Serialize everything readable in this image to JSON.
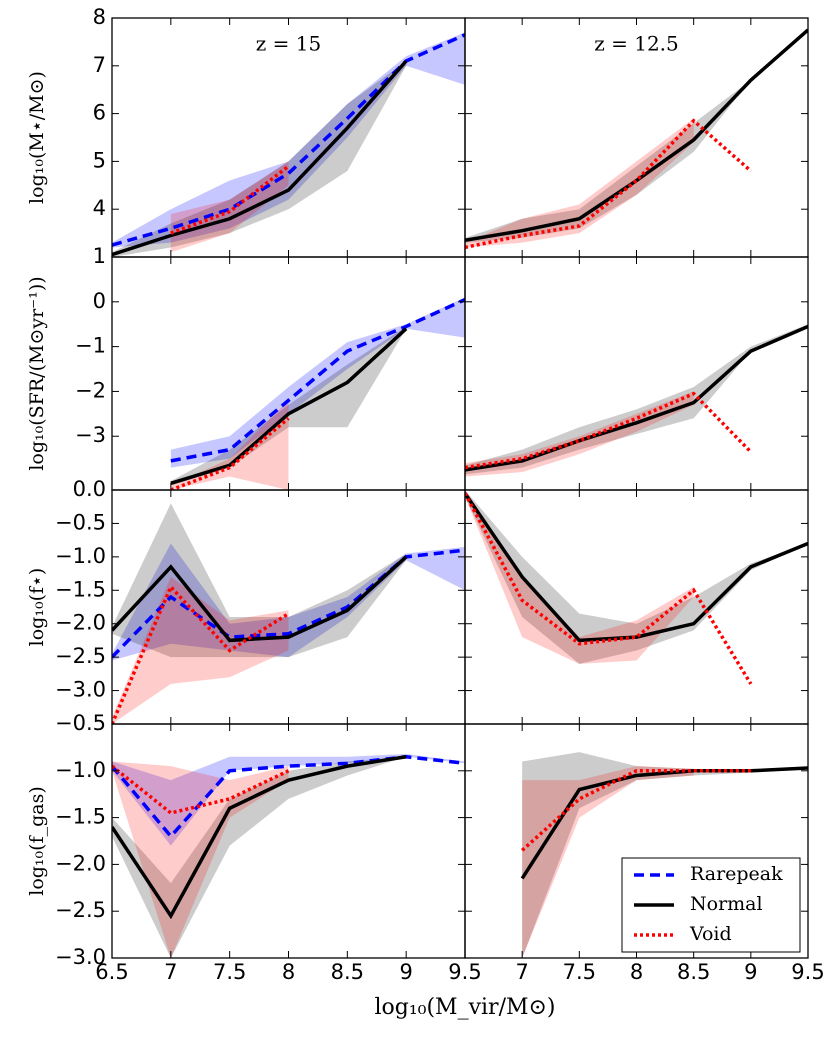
{
  "chart_data": {
    "type": "line",
    "xlabel": "log₁₀(M_vir/M⊙)",
    "x": [
      6.5,
      7.0,
      7.5,
      8.0,
      8.5,
      9.0,
      9.5
    ],
    "xlim": [
      6.5,
      9.5
    ],
    "xticks": [
      6.5,
      7.0,
      7.5,
      8.0,
      8.5,
      9.0,
      9.5
    ],
    "panel_titles": [
      "z = 15",
      "z = 12.5"
    ],
    "legend": "lower right",
    "grid": false,
    "rows": [
      {
        "ylabel": "log₁₀(M⋆/M⊙)",
        "ylim": [
          3,
          8
        ],
        "yticks": [
          4,
          5,
          6,
          7,
          8
        ]
      },
      {
        "ylabel": "log₁₀(SFR/(M⊙yr⁻¹))",
        "ylim": [
          -4.2,
          1
        ],
        "yticks": [
          {
            "value": -3,
            "label": "−3"
          },
          {
            "value": -2,
            "label": "−2"
          },
          {
            "value": -1,
            "label": "−1"
          },
          0,
          1
        ]
      },
      {
        "ylabel": "log₁₀(f⋆)",
        "ylim": [
          -3.5,
          0
        ],
        "yticks": [
          {
            "value": -3,
            "label": "−3.0"
          },
          {
            "value": -2.5,
            "label": "−2.5"
          },
          {
            "value": -2,
            "label": "−2.0"
          },
          {
            "value": -1.5,
            "label": "−1.5"
          },
          {
            "value": -1,
            "label": "−1.0"
          },
          {
            "value": -0.5,
            "label": "−0.5"
          },
          {
            "value": 0,
            "label": "0.0"
          }
        ]
      },
      {
        "ylabel": "log₁₀(f_gas)",
        "ylim": [
          -3,
          -0.5
        ],
        "yticks": [
          {
            "value": -3,
            "label": "−3.0"
          },
          {
            "value": -2.5,
            "label": "−2.5"
          },
          {
            "value": -2,
            "label": "−2.0"
          },
          {
            "value": -1.5,
            "label": "−1.5"
          },
          {
            "value": -1,
            "label": "−1.0"
          },
          {
            "value": -0.5,
            "label": "−0.5"
          }
        ]
      }
    ],
    "series": [
      {
        "name": "Rarepeak",
        "color": "#0000ff",
        "dash": "10,6",
        "band_color": "#0000ff",
        "band_alpha": 0.22,
        "panels": [
          [
            {
              "values": [
                3.25,
                3.6,
                4.0,
                4.75,
                5.9,
                7.1,
                7.65
              ],
              "lower": [
                3.2,
                3.3,
                3.6,
                4.2,
                5.5,
                7.0,
                6.6
              ],
              "upper": [
                3.3,
                4.0,
                4.6,
                5.0,
                6.2,
                7.2,
                7.7
              ]
            },
            null
          ],
          [
            {
              "values": [
                null,
                -3.55,
                -3.3,
                -2.2,
                -1.1,
                -0.55,
                0.05
              ],
              "lower": [
                null,
                -3.7,
                -3.5,
                -2.5,
                -1.5,
                -0.6,
                -0.8
              ],
              "upper": [
                null,
                -3.3,
                -3.0,
                -1.9,
                -0.9,
                -0.5,
                0.1
              ]
            },
            null
          ],
          [
            {
              "values": [
                -2.5,
                -1.6,
                -2.2,
                -2.15,
                -1.75,
                -1.0,
                -0.9
              ],
              "lower": [
                -2.55,
                -2.3,
                -2.4,
                -2.5,
                -1.9,
                -1.05,
                -1.5
              ],
              "upper": [
                -2.45,
                -0.8,
                -2.0,
                -1.9,
                -1.6,
                -0.95,
                -0.85
              ]
            },
            null
          ],
          [
            {
              "values": [
                -0.95,
                -1.7,
                -1.0,
                -0.95,
                -0.92,
                -0.85,
                -0.92
              ],
              "lower": [
                -1.0,
                -1.8,
                -1.0,
                -0.95,
                -0.92,
                -0.85,
                -0.92
              ],
              "upper": [
                -0.9,
                -1.1,
                -0.85,
                -0.85,
                -0.85,
                -0.82,
                -0.9
              ]
            },
            null
          ]
        ]
      },
      {
        "name": "Normal",
        "color": "#000000",
        "dash": "none",
        "band_color": "#000000",
        "band_alpha": 0.2,
        "panels": [
          [
            {
              "values": [
                3.05,
                3.45,
                3.8,
                4.4,
                5.7,
                7.1,
                null
              ],
              "lower": [
                3.0,
                3.2,
                3.5,
                4.0,
                4.8,
                7.0,
                null
              ],
              "upper": [
                3.1,
                3.7,
                4.2,
                5.0,
                6.2,
                7.1,
                null
              ]
            },
            {
              "values": [
                3.35,
                3.55,
                3.8,
                4.6,
                5.45,
                6.7,
                7.75
              ],
              "lower": [
                3.3,
                3.4,
                3.6,
                4.3,
                5.2,
                6.7,
                7.75
              ],
              "upper": [
                3.4,
                3.8,
                4.0,
                4.9,
                5.8,
                6.7,
                7.75
              ]
            }
          ],
          [
            {
              "values": [
                null,
                -4.05,
                -3.65,
                -2.5,
                -1.8,
                -0.6,
                null
              ],
              "lower": [
                null,
                -4.1,
                -3.7,
                -2.8,
                -2.8,
                -0.6,
                null
              ],
              "upper": [
                null,
                -4.0,
                -3.3,
                -2.3,
                -1.4,
                -0.55,
                null
              ]
            },
            {
              "values": [
                -3.75,
                -3.55,
                -3.1,
                -2.7,
                -2.25,
                -1.1,
                -0.55
              ],
              "lower": [
                -3.85,
                -3.7,
                -3.3,
                -2.95,
                -2.6,
                -1.1,
                -0.55
              ],
              "upper": [
                -3.65,
                -3.3,
                -2.8,
                -2.4,
                -1.9,
                -1.0,
                -0.5
              ]
            }
          ],
          [
            {
              "values": [
                -2.1,
                -1.15,
                -2.25,
                -2.2,
                -1.8,
                -1.0,
                null
              ],
              "lower": [
                -2.15,
                -2.5,
                -2.5,
                -2.5,
                -2.2,
                -1.05,
                null
              ],
              "upper": [
                -2.05,
                -0.2,
                -1.9,
                -1.9,
                -1.5,
                -0.95,
                null
              ]
            },
            {
              "values": [
                -0.05,
                -1.3,
                -2.25,
                -2.2,
                -2.0,
                -1.15,
                -0.8
              ],
              "lower": [
                -0.1,
                -1.9,
                -2.6,
                -2.4,
                -2.1,
                -1.2,
                -0.8
              ],
              "upper": [
                0,
                -1.0,
                -1.85,
                -2.0,
                -1.6,
                -1.1,
                -0.8
              ]
            }
          ],
          [
            {
              "values": [
                -1.6,
                -2.55,
                -1.4,
                -1.1,
                -0.95,
                -0.85,
                null
              ],
              "lower": [
                -1.7,
                -3.0,
                -1.8,
                -1.3,
                -1.05,
                -0.85,
                null
              ],
              "upper": [
                -1.5,
                -2.2,
                -1.3,
                -1.0,
                -0.9,
                -0.85,
                null
              ]
            },
            {
              "values": [
                null,
                -2.15,
                -1.2,
                -1.05,
                -1.0,
                -1.0,
                -0.97
              ],
              "lower": [
                null,
                -3.0,
                -1.4,
                -1.1,
                -1.05,
                -1.02,
                -0.97
              ],
              "upper": [
                null,
                -0.9,
                -0.8,
                -0.95,
                -0.98,
                -1.0,
                -0.97
              ]
            }
          ]
        ]
      },
      {
        "name": "Void",
        "color": "#ff0000",
        "dash": "3,3",
        "band_color": "#ff0000",
        "band_alpha": 0.2,
        "panels": [
          [
            {
              "values": [
                null,
                3.5,
                3.95,
                4.9,
                null,
                null,
                null
              ],
              "lower": [
                null,
                3.1,
                3.5,
                4.5,
                null,
                null,
                null
              ],
              "upper": [
                null,
                3.9,
                4.2,
                5.0,
                null,
                null,
                null
              ]
            },
            {
              "values": [
                3.2,
                3.45,
                3.65,
                4.6,
                5.85,
                4.8,
                null
              ],
              "lower": [
                3.2,
                3.3,
                3.5,
                4.3,
                5.4,
                null,
                null
              ],
              "upper": [
                3.3,
                3.8,
                4.1,
                5.0,
                5.9,
                null,
                null
              ]
            }
          ],
          [
            {
              "values": [
                null,
                -4.2,
                -3.7,
                -2.6,
                null,
                null,
                null
              ],
              "lower": [
                null,
                -4.2,
                -3.9,
                -4.2,
                null,
                null,
                null
              ],
              "upper": [
                null,
                -4.1,
                -3.5,
                -2.2,
                null,
                null,
                null
              ]
            },
            {
              "values": [
                -3.7,
                -3.5,
                -3.1,
                -2.6,
                -2.05,
                -3.35,
                null
              ],
              "lower": [
                -3.9,
                -3.8,
                -3.4,
                -2.9,
                -2.3,
                null,
                null
              ],
              "upper": [
                -3.6,
                -3.4,
                -3.0,
                -2.5,
                -2.0,
                null,
                null
              ]
            }
          ],
          [
            {
              "values": [
                -3.5,
                -1.45,
                -2.4,
                -1.85,
                null,
                null,
                null
              ],
              "lower": [
                -3.5,
                -2.9,
                -2.8,
                -2.4,
                null,
                null,
                null
              ],
              "upper": [
                -3.4,
                -1.3,
                -1.95,
                -1.8,
                null,
                null,
                null
              ]
            },
            {
              "values": [
                -0.05,
                -1.65,
                -2.3,
                -2.2,
                -1.5,
                -2.9,
                null
              ],
              "lower": [
                -0.1,
                -2.2,
                -2.6,
                -2.55,
                -1.6,
                null,
                null
              ],
              "upper": [
                0,
                -1.3,
                -2.2,
                -1.95,
                -1.45,
                null,
                null
              ]
            }
          ],
          [
            {
              "values": [
                -0.95,
                -1.45,
                -1.3,
                -1.0,
                null,
                null,
                null
              ],
              "lower": [
                -1.0,
                -3.0,
                -1.5,
                -1.1,
                null,
                null,
                null
              ],
              "upper": [
                -0.9,
                -0.95,
                -1.1,
                -0.95,
                null,
                null,
                null
              ]
            },
            {
              "values": [
                null,
                -1.85,
                -1.3,
                -1.0,
                -1.0,
                -1.0,
                null
              ],
              "lower": [
                null,
                -3.0,
                -1.5,
                -1.1,
                -1.05,
                null,
                null
              ],
              "upper": [
                null,
                -1.1,
                -1.1,
                -0.95,
                -0.98,
                null,
                null
              ]
            }
          ]
        ]
      }
    ]
  }
}
